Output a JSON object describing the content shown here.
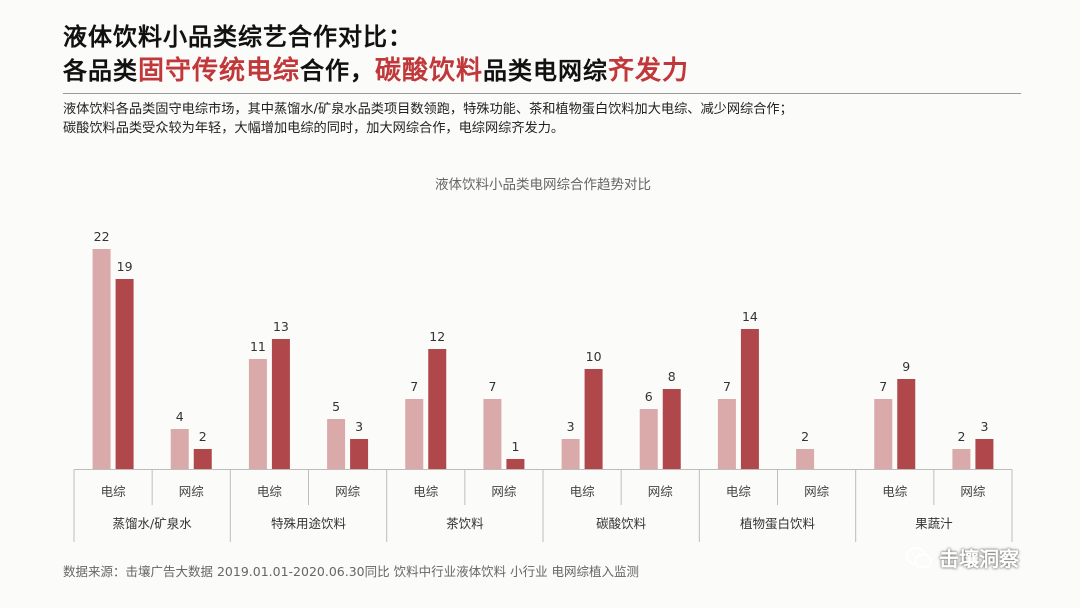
{
  "title": {
    "line1": "液体饮料小品类综艺合作对比：",
    "line2_parts": [
      {
        "text": "各品类",
        "hl": false
      },
      {
        "text": "固守传统电综",
        "hl": true
      },
      {
        "text": "合作，",
        "hl": false
      },
      {
        "text": "碳酸饮料",
        "hl": true
      },
      {
        "text": "品类电网综",
        "hl": false
      },
      {
        "text": "齐发力",
        "hl": true
      }
    ]
  },
  "description": [
    "液体饮料各品类固守电综市场，其中蒸馏水/矿泉水品类项目数领跑，特殊功能、茶和植物蛋白饮料加大电综、减少网综合作；",
    "碳酸饮料品类受众较为年轻，大幅增加电综的同时，加大网综合作，电综网综齐发力。"
  ],
  "colors": {
    "light": "#d9aaa9",
    "dark": "#b0474a",
    "highlight": "#c0383a"
  },
  "chart_data": {
    "type": "bar",
    "title": "液体饮料小品类电网综合作趋势对比",
    "groups": [
      {
        "name": "蒸馏水/矿泉水",
        "subs": [
          {
            "label": "电综",
            "values": [
              22,
              19
            ]
          },
          {
            "label": "网综",
            "values": [
              4,
              2
            ]
          }
        ]
      },
      {
        "name": "特殊用途饮料",
        "subs": [
          {
            "label": "电综",
            "values": [
              11,
              13
            ]
          },
          {
            "label": "网综",
            "values": [
              5,
              3
            ]
          }
        ]
      },
      {
        "name": "茶饮料",
        "subs": [
          {
            "label": "电综",
            "values": [
              7,
              12
            ]
          },
          {
            "label": "网综",
            "values": [
              7,
              1
            ]
          }
        ]
      },
      {
        "name": "碳酸饮料",
        "subs": [
          {
            "label": "电综",
            "values": [
              3,
              10
            ]
          },
          {
            "label": "网综",
            "values": [
              6,
              8
            ]
          }
        ]
      },
      {
        "name": "植物蛋白饮料",
        "subs": [
          {
            "label": "电综",
            "values": [
              7,
              14
            ]
          },
          {
            "label": "网综",
            "values": [
              2,
              null
            ]
          }
        ]
      },
      {
        "name": "果蔬汁",
        "subs": [
          {
            "label": "电综",
            "values": [
              7,
              9
            ]
          },
          {
            "label": "网综",
            "values": [
              2,
              3
            ]
          }
        ]
      }
    ]
  },
  "source": "数据来源：击壤广告大数据 2019.01.01-2020.06.30同比 饮料中行业液体饮料 小行业 电网综植入监测",
  "watermark": "击壤洞察",
  "watermark_icon": "wechat-icon"
}
